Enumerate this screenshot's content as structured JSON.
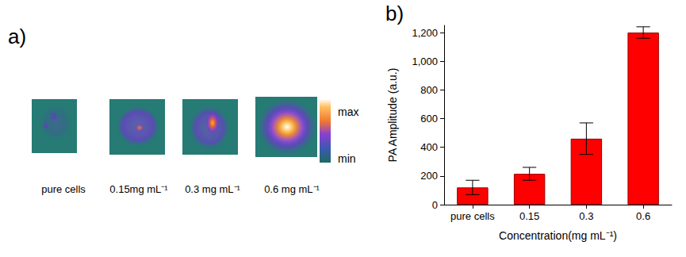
{
  "panel_labels": [
    "a)",
    "b)"
  ],
  "images": {
    "captions": [
      "pure cells",
      "0.15mg mL⁻¹",
      "0.3 mg mL⁻¹",
      "0.6 mg mL⁻¹"
    ],
    "colorbar": {
      "max": "max",
      "min": "min"
    }
  },
  "chart_data": {
    "type": "bar",
    "categories": [
      "pure cells",
      "0.15",
      "0.3",
      "0.6"
    ],
    "values": [
      120,
      215,
      460,
      1200
    ],
    "errors": [
      50,
      45,
      110,
      40
    ],
    "color": "#ff0000",
    "x_label": "Concentration(mg mL⁻¹)",
    "y_label": "PA Amplitude (a.u.)",
    "ylim": [
      0,
      1250
    ],
    "yticks": [
      0,
      200,
      400,
      600,
      800,
      1000,
      1200
    ],
    "grid": false
  }
}
